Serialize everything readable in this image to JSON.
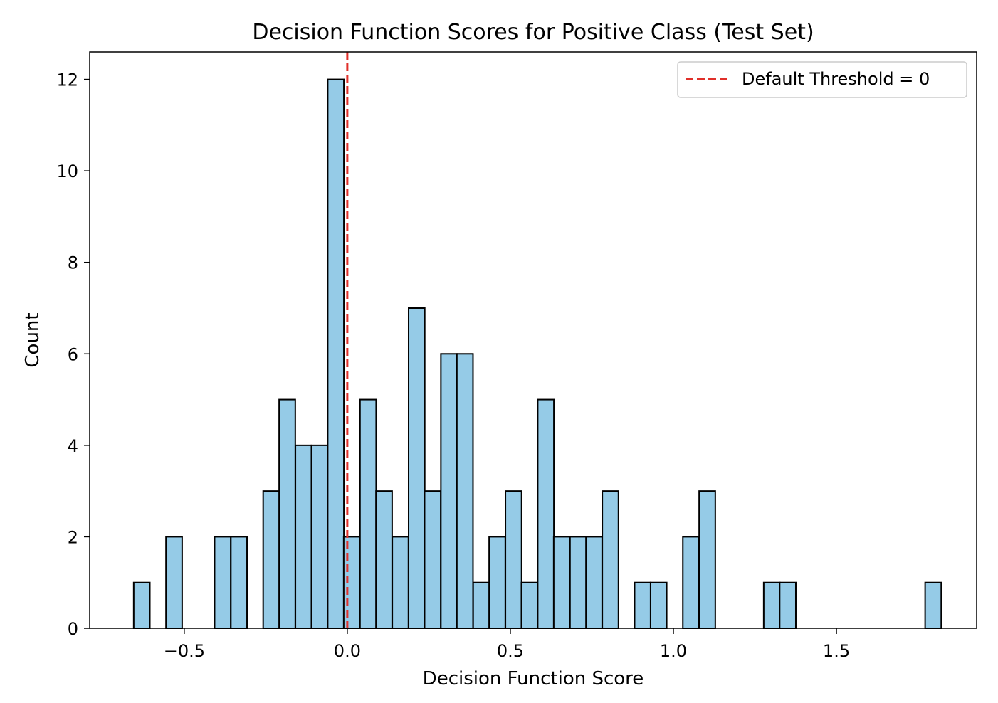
{
  "chart_data": {
    "type": "bar",
    "subtype": "histogram",
    "title": "Decision Function Scores for Positive Class (Test Set)",
    "xlabel": "Decision Function Score",
    "ylabel": "Count",
    "xlim": [
      -0.79,
      1.93
    ],
    "ylim": [
      0,
      12.6
    ],
    "bin_width": 0.0495,
    "x_ticks": [
      -0.5,
      0.0,
      0.5,
      1.0,
      1.5
    ],
    "x_tick_labels": [
      "−0.5",
      "0.0",
      "0.5",
      "1.0",
      "1.5"
    ],
    "y_ticks": [
      0,
      2,
      4,
      6,
      8,
      10,
      12
    ],
    "y_tick_labels": [
      "0",
      "2",
      "4",
      "6",
      "8",
      "10",
      "12"
    ],
    "bins": [
      {
        "start": -0.655,
        "count": 1
      },
      {
        "start": -0.556,
        "count": 2
      },
      {
        "start": -0.407,
        "count": 2
      },
      {
        "start": -0.357,
        "count": 2
      },
      {
        "start": -0.258,
        "count": 3
      },
      {
        "start": -0.209,
        "count": 5
      },
      {
        "start": -0.159,
        "count": 4
      },
      {
        "start": -0.11,
        "count": 4
      },
      {
        "start": -0.06,
        "count": 12
      },
      {
        "start": -0.011,
        "count": 2
      },
      {
        "start": 0.039,
        "count": 5
      },
      {
        "start": 0.088,
        "count": 3
      },
      {
        "start": 0.138,
        "count": 2
      },
      {
        "start": 0.188,
        "count": 7
      },
      {
        "start": 0.237,
        "count": 3
      },
      {
        "start": 0.287,
        "count": 6
      },
      {
        "start": 0.336,
        "count": 6
      },
      {
        "start": 0.386,
        "count": 1
      },
      {
        "start": 0.435,
        "count": 2
      },
      {
        "start": 0.485,
        "count": 3
      },
      {
        "start": 0.534,
        "count": 1
      },
      {
        "start": 0.584,
        "count": 5
      },
      {
        "start": 0.633,
        "count": 2
      },
      {
        "start": 0.683,
        "count": 2
      },
      {
        "start": 0.732,
        "count": 2
      },
      {
        "start": 0.782,
        "count": 3
      },
      {
        "start": 0.881,
        "count": 1
      },
      {
        "start": 0.93,
        "count": 1
      },
      {
        "start": 1.029,
        "count": 2
      },
      {
        "start": 1.079,
        "count": 3
      },
      {
        "start": 1.277,
        "count": 1
      },
      {
        "start": 1.326,
        "count": 1
      },
      {
        "start": 1.772,
        "count": 1
      }
    ],
    "bar_color": "#95cbe7",
    "bar_edge_color": "#000000",
    "threshold": {
      "value": 0,
      "label": "Default Threshold = 0",
      "color": "#e0302a",
      "style": "dashed"
    },
    "legend": {
      "placement": "top-right",
      "entries": [
        "Default Threshold = 0"
      ]
    },
    "grid": false
  }
}
